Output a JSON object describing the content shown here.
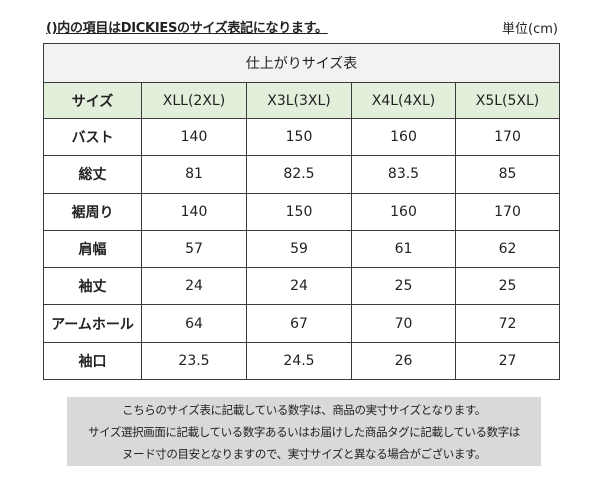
{
  "header": {
    "note": "()内の項目はDICKIESのサイズ表記になります。",
    "unit": "単位(cm)"
  },
  "table": {
    "title": "仕上がりサイズ表",
    "corner_label": "サイズ",
    "columns": [
      "XLL(2XL)",
      "X3L(3XL)",
      "X4L(4XL)",
      "X5L(5XL)"
    ],
    "rows": [
      {
        "label": "バスト",
        "values": [
          "140",
          "150",
          "160",
          "170"
        ]
      },
      {
        "label": "総丈",
        "values": [
          "81",
          "82.5",
          "83.5",
          "85"
        ]
      },
      {
        "label": "裾周り",
        "values": [
          "140",
          "150",
          "160",
          "170"
        ]
      },
      {
        "label": "肩幅",
        "values": [
          "57",
          "59",
          "61",
          "62"
        ]
      },
      {
        "label": "袖丈",
        "values": [
          "24",
          "24",
          "25",
          "25"
        ]
      },
      {
        "label": "アームホール",
        "values": [
          "64",
          "67",
          "70",
          "72"
        ]
      },
      {
        "label": "袖口",
        "values": [
          "23.5",
          "24.5",
          "26",
          "27"
        ]
      }
    ],
    "colors": {
      "title_bg": "#f2f2f2",
      "header_bg": "#e2efda",
      "border": "#3a3a3a"
    }
  },
  "footer": {
    "lines": [
      "こちらのサイズ表に記載している数字は、商品の実寸サイズとなります。",
      "サイズ選択画面に記載している数字あるいはお届けした商品タグに記載している数字は",
      "ヌード寸の目安となりますので、実寸サイズと異なる場合がございます。"
    ],
    "bg": "#d9d9d9"
  }
}
